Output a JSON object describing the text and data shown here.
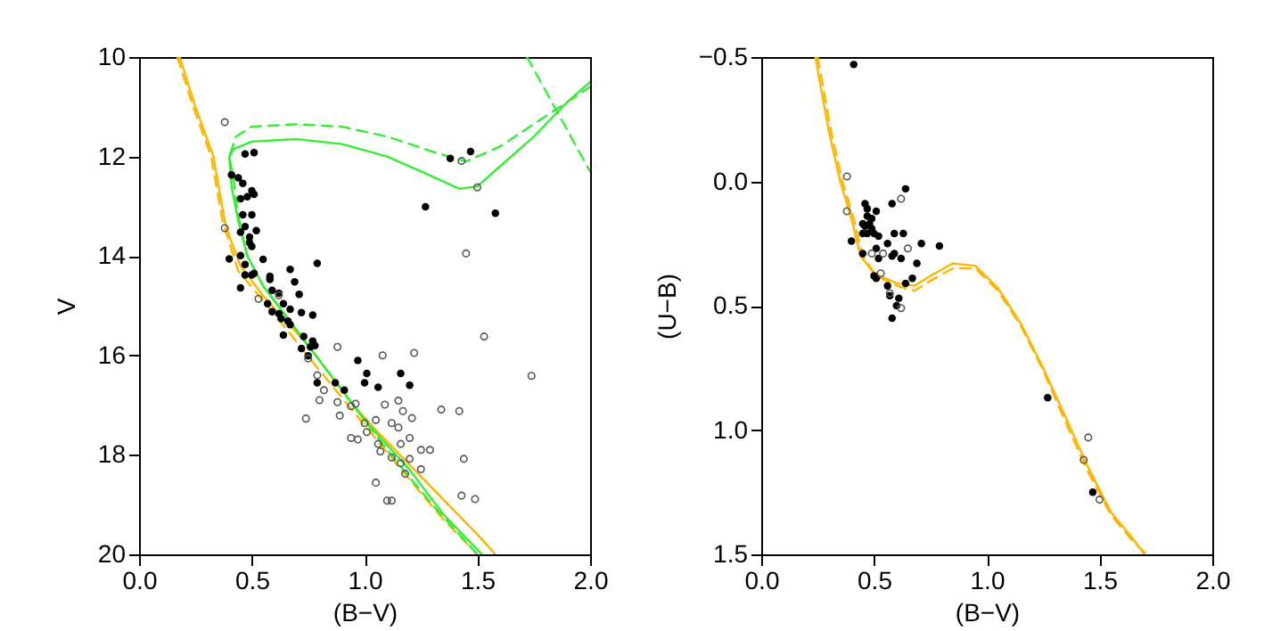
{
  "chart_data": [
    {
      "type": "scatter",
      "xlabel": "(B−V)",
      "ylabel": "V",
      "xlim": [
        0,
        2
      ],
      "ylim": [
        20,
        10
      ],
      "grid": false,
      "xticks": [
        {
          "value": 0,
          "label": "0.0"
        },
        {
          "value": 0.5,
          "label": "0.5"
        },
        {
          "value": 1,
          "label": "1.0"
        },
        {
          "value": 1.5,
          "label": "1.5"
        },
        {
          "value": 2,
          "label": "2.0"
        }
      ],
      "yticks": [
        10,
        12,
        14,
        16,
        18,
        20
      ],
      "series": [
        {
          "type": "line",
          "line_style": "solid",
          "color": "#ffb400",
          "x": [
            0.18,
            0.25,
            0.33,
            0.38,
            0.4,
            0.45,
            0.55,
            0.65,
            0.75,
            0.85,
            0.95,
            1.05,
            1.2,
            1.35,
            1.5,
            1.58
          ],
          "values": [
            10,
            11,
            12,
            13.3,
            13.6,
            14.2,
            14.8,
            15.3,
            15.8,
            16.4,
            17,
            17.5,
            18.2,
            18.9,
            19.6,
            20
          ]
        },
        {
          "type": "line",
          "line_style": "dashed",
          "color": "#ffb400",
          "x": [
            0.17,
            0.24,
            0.32,
            0.37,
            0.44,
            0.55,
            0.65,
            0.8,
            1,
            1.2,
            1.35,
            1.5
          ],
          "values": [
            10,
            11,
            12,
            13.3,
            14.3,
            14.9,
            15.45,
            16.3,
            17.4,
            18.5,
            19.3,
            20
          ]
        },
        {
          "type": "line",
          "line_style": "solid",
          "color": "#33ee33",
          "x": [
            1.52,
            1.35,
            1.2,
            1,
            0.8,
            0.65,
            0.55,
            0.48,
            0.44,
            0.41,
            0.4,
            0.42,
            0.5,
            0.7,
            0.9,
            1.1,
            1.3,
            1.42,
            1.5,
            1.6,
            1.75,
            1.9,
            2
          ],
          "values": [
            20,
            19.2,
            18.3,
            17.3,
            16.1,
            15.2,
            14.6,
            14,
            13.3,
            12.6,
            12,
            11.85,
            11.7,
            11.65,
            11.75,
            12,
            12.4,
            12.65,
            12.6,
            12.2,
            11.6,
            10.9,
            10.5
          ]
        },
        {
          "type": "line",
          "line_style": "dashed",
          "color": "#33ee33",
          "x": [
            1.5,
            1.3,
            1.1,
            0.9,
            0.7,
            0.55,
            0.48,
            0.44,
            0.42,
            0.4,
            0.43,
            0.5,
            0.7,
            0.9,
            1.1,
            1.3,
            1.45,
            1.6,
            1.8,
            2
          ],
          "values": [
            20,
            19,
            17.9,
            16.7,
            15.5,
            14.6,
            14,
            13.2,
            12.5,
            12,
            11.6,
            11.4,
            11.35,
            11.4,
            11.6,
            11.9,
            12.1,
            11.8,
            11.2,
            10.6
          ]
        },
        {
          "type": "line",
          "line_style": "dashed",
          "color": "#33ee33",
          "x": [
            1.72,
            2
          ],
          "values": [
            10,
            12.3
          ]
        },
        {
          "marker": "circle",
          "color": "#000000",
          "x": [
            0.51,
            0.47,
            0.41,
            0.44,
            0.46,
            0.45,
            0.48,
            0.5,
            0.51,
            0.46,
            0.5,
            0.47,
            0.52,
            0.45,
            0.49,
            0.49,
            0.5,
            0.45,
            0.4,
            0.55,
            0.47,
            0.51,
            0.47,
            0.5,
            0.45,
            0.58,
            0.58,
            0.67,
            0.69,
            0.79,
            0.71,
            0.59,
            0.62,
            0.64,
            0.67,
            0.72,
            0.77,
            0.57,
            0.62,
            0.66,
            0.59,
            1.38,
            1.47,
            1.27,
            1.58,
            0.64,
            0.73,
            0.77,
            0.72,
            0.76,
            0.78,
            0.75,
            0.79,
            0.87,
            0.91,
            0.97,
            1.01,
            1,
            1.06,
            1.16,
            1.2,
            0.67,
            0.63
          ],
          "values": [
            11.92,
            11.95,
            12.37,
            12.43,
            12.54,
            12.85,
            12.81,
            12.69,
            12.76,
            13.17,
            13.17,
            13.41,
            13.49,
            13.52,
            13.62,
            13.73,
            13.81,
            13.99,
            14.06,
            14.07,
            14.17,
            14.35,
            14.38,
            14.38,
            14.64,
            14.41,
            14.47,
            14.27,
            14.52,
            14.15,
            14.77,
            14.69,
            14.75,
            14.96,
            15.07,
            15.14,
            15.19,
            14.96,
            15.16,
            15.31,
            15.12,
            12.04,
            11.9,
            13.01,
            13.14,
            15.59,
            15.62,
            15.71,
            15.86,
            15.83,
            15.8,
            16.01,
            16.55,
            16.55,
            16.7,
            16.1,
            16.36,
            16.55,
            16.64,
            16.36,
            16.6,
            15.38,
            15.26
          ]
        },
        {
          "marker": "circle",
          "color": "#555555",
          "x": [
            0.38,
            0.38,
            1.43,
            1.5,
            1.45,
            0.53,
            0.62,
            0.75,
            0.88,
            1.08,
            1.22,
            1.53,
            1.74,
            0.79,
            0.82,
            0.8,
            0.74,
            0.88,
            0.89,
            0.94,
            0.96,
            1,
            0.94,
            0.97,
            1.01,
            1.05,
            1.09,
            1.12,
            1.15,
            1.17,
            1.21,
            1.15,
            1.06,
            1.07,
            1.12,
            1.16,
            1.2,
            1.18,
            1.16,
            1.2,
            1.25,
            1.29,
            1.25,
            1.34,
            1.42,
            1.44,
            1.43,
            1.49,
            1.05,
            1.1,
            1.12
          ],
          "values": [
            11.31,
            13.44,
            12.09,
            12.62,
            13.95,
            14.86,
            14.79,
            16.06,
            15.83,
            16,
            15.95,
            15.62,
            16.41,
            16.4,
            16.7,
            16.9,
            17.27,
            16.94,
            17.21,
            17.02,
            16.97,
            17.36,
            17.66,
            17.69,
            17.54,
            17.3,
            16.99,
            17.36,
            17.45,
            17.12,
            17.26,
            16.91,
            17.78,
            17.93,
            18.05,
            18.17,
            18.08,
            18.38,
            17.78,
            17.66,
            17.9,
            17.9,
            18.29,
            17.09,
            17.12,
            18.08,
            18.82,
            18.89,
            18.56,
            18.92,
            18.92
          ]
        }
      ]
    },
    {
      "type": "scatter",
      "xlabel": "(B−V)",
      "ylabel": "(U−B)",
      "xlim": [
        0,
        2
      ],
      "ylim": [
        1.5,
        -0.5
      ],
      "grid": false,
      "xticks": [
        {
          "value": 0,
          "label": "0.0"
        },
        {
          "value": 0.5,
          "label": "0.5"
        },
        {
          "value": 1,
          "label": "1.0"
        },
        {
          "value": 1.5,
          "label": "1.5"
        },
        {
          "value": 2,
          "label": "2.0"
        }
      ],
      "yticks": [
        {
          "value": -0.5,
          "label": "−0.5"
        },
        {
          "value": 0,
          "label": "0.0"
        },
        {
          "value": 0.5,
          "label": "0.5"
        },
        {
          "value": 1,
          "label": "1.0"
        },
        {
          "value": 1.5,
          "label": "1.5"
        }
      ],
      "series": [
        {
          "type": "line",
          "line_style": "solid",
          "color": "#ffb400",
          "x": [
            0.24,
            0.3,
            0.35,
            0.4,
            0.44,
            0.5,
            0.6,
            0.68,
            0.75,
            0.85,
            0.95,
            1.05,
            1.15,
            1.25,
            1.35,
            1.45,
            1.55,
            1.65,
            1.7
          ],
          "values": [
            -0.5,
            -0.2,
            0,
            0.15,
            0.3,
            0.37,
            0.41,
            0.42,
            0.38,
            0.33,
            0.34,
            0.43,
            0.57,
            0.75,
            0.95,
            1.15,
            1.33,
            1.44,
            1.5
          ]
        },
        {
          "type": "line",
          "line_style": "dashed",
          "color": "#ffb400",
          "x": [
            0.25,
            0.31,
            0.36,
            0.41,
            0.45,
            0.51,
            0.6,
            0.68,
            0.75,
            0.85,
            0.95,
            1.05,
            1.15,
            1.25,
            1.35,
            1.45,
            1.55,
            1.65,
            1.71
          ],
          "values": [
            -0.5,
            -0.2,
            0,
            0.15,
            0.3,
            0.38,
            0.42,
            0.44,
            0.4,
            0.35,
            0.35,
            0.44,
            0.58,
            0.76,
            0.97,
            1.17,
            1.34,
            1.45,
            1.5
          ]
        },
        {
          "marker": "circle",
          "color": "#000000",
          "x": [
            0.41,
            0.64,
            0.58,
            0.46,
            0.47,
            0.51,
            0.49,
            0.47,
            0.45,
            0.46,
            0.48,
            0.49,
            0.47,
            0.5,
            0.52,
            0.45,
            0.59,
            0.63,
            0.4,
            0.56,
            0.71,
            0.79,
            0.51,
            0.59,
            0.58,
            0.62,
            0.45,
            0.52,
            0.69,
            0.5,
            0.51,
            0.67,
            0.64,
            0.56,
            0.57,
            0.61,
            0.6,
            0.58,
            1.27,
            1.47
          ],
          "values": [
            -0.47,
            0.03,
            0.09,
            0.09,
            0.11,
            0.12,
            0.15,
            0.14,
            0.17,
            0.18,
            0.17,
            0.19,
            0.21,
            0.21,
            0.22,
            0.21,
            0.21,
            0.21,
            0.24,
            0.25,
            0.25,
            0.26,
            0.27,
            0.29,
            0.3,
            0.31,
            0.29,
            0.31,
            0.33,
            0.38,
            0.39,
            0.39,
            0.41,
            0.42,
            0.46,
            0.47,
            0.5,
            0.55,
            0.87,
            1.25
          ]
        },
        {
          "marker": "circle",
          "color": "#555555",
          "x": [
            0.38,
            0.38,
            0.62,
            0.49,
            0.54,
            0.65,
            0.53,
            0.57,
            0.62,
            1.45,
            1.43,
            1.5
          ],
          "values": [
            -0.02,
            0.12,
            0.07,
            0.29,
            0.29,
            0.27,
            0.37,
            0.45,
            0.51,
            1.03,
            1.12,
            1.28
          ]
        }
      ]
    }
  ]
}
